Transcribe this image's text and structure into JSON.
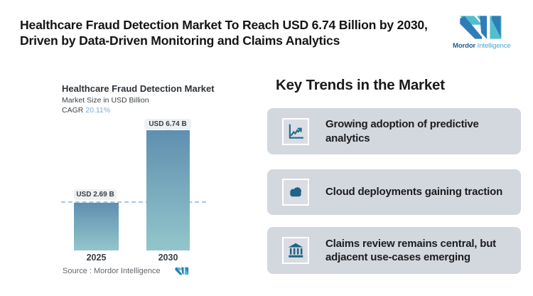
{
  "header": {
    "title_lines": [
      "Healthcare Fraud Detection Market To Reach USD 6.74 Billion by 2030,",
      "Driven by Data-Driven Monitoring and Claims Analytics"
    ],
    "brand_bold": "Mordor",
    "brand_light": "Intelligence"
  },
  "chart": {
    "title": "Healthcare Fraud Detection Market",
    "subtitle": "Market Size in USD Billion",
    "cagr_label": "CAGR",
    "cagr_value": "20.11%",
    "source": "Source :  Mordor Intelligence",
    "bars": [
      {
        "year": "2025",
        "label": "USD 2.69 B",
        "value": 2.69
      },
      {
        "year": "2030",
        "label": "USD 6.74 B",
        "value": 6.74
      }
    ]
  },
  "chart_data": {
    "type": "bar",
    "title": "Healthcare Fraud Detection Market",
    "subtitle": "Market Size in USD Billion",
    "categories": [
      "2025",
      "2030"
    ],
    "values": [
      2.69,
      6.74
    ],
    "bar_labels": [
      "USD 2.69 B",
      "USD 6.74 B"
    ],
    "cagr": "20.11%",
    "xlabel": "",
    "ylabel": "Market Size in USD Billion",
    "ylim": [
      0,
      6.74
    ],
    "grid": false,
    "legend": "none",
    "reference_line_at": 2.69,
    "source": "Source :  Mordor Intelligence"
  },
  "trends": {
    "heading": "Key Trends in the Market",
    "cards": [
      {
        "icon": "line-chart-icon",
        "text": "Growing adoption of predictive analytics"
      },
      {
        "icon": "cloud-icon",
        "text": "Cloud deployments gaining traction"
      },
      {
        "icon": "bank-icon",
        "text": "Claims review remains central, but adjacent use-cases emerging"
      }
    ]
  },
  "colors": {
    "brand_teal": "#53bfca",
    "brand_blue": "#2f7db8",
    "brand_text_dark": "#1d5d8f",
    "brand_text_light": "#4aa3d8",
    "bar_gradient_top": "#5f8fb0",
    "bar_gradient_bottom": "#93c6cb",
    "dashed_line": "#aac8dd",
    "value_label_bg": "#edf1f4",
    "card_bg": "#d3d7de",
    "icon_blue": "#256a8e",
    "cagr_blue": "#71a9d9"
  }
}
